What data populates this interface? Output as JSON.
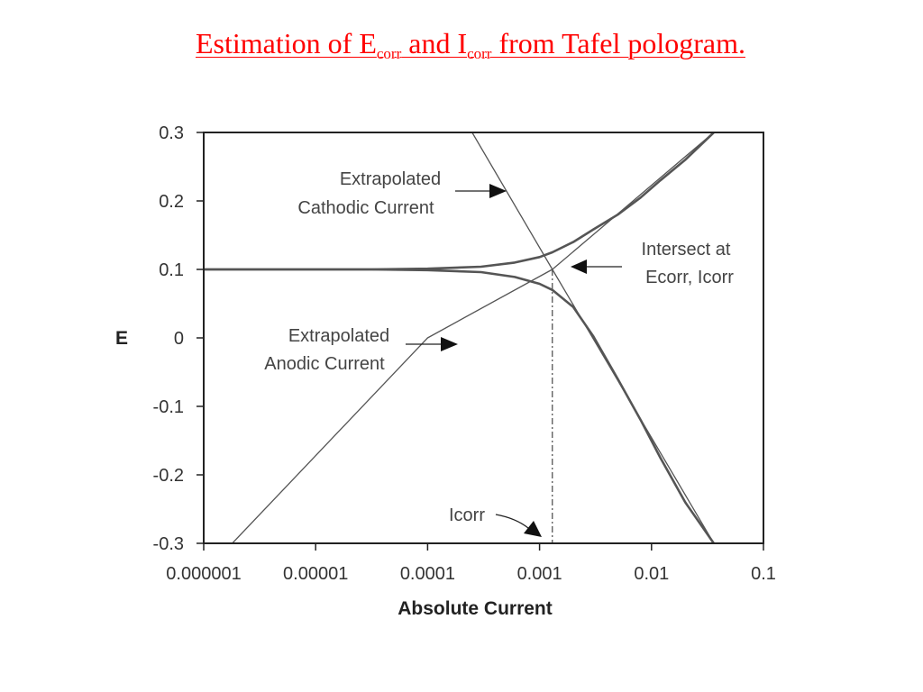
{
  "slide": {
    "title_prefix": "Estimation of E",
    "title_sub1": "corr",
    "title_mid": " and I",
    "title_sub2": "corr",
    "title_suffix": " from Tafel pologram.",
    "title_color": "#ff0000"
  },
  "chart_data": {
    "type": "line",
    "title": "",
    "xlabel": "Absolute Current",
    "ylabel": "E",
    "x_scale": "log",
    "xlim": [
      1e-06,
      0.1
    ],
    "ylim": [
      -0.3,
      0.3
    ],
    "x_ticks": [
      1e-06,
      1e-05,
      0.0001,
      0.001,
      0.01,
      0.1
    ],
    "x_tick_labels": [
      "0.000001",
      "0.00001",
      "0.0001",
      "0.001",
      "0.01",
      "0.1"
    ],
    "y_ticks": [
      0.3,
      0.2,
      0.1,
      0,
      -0.1,
      -0.2,
      -0.3
    ],
    "y_tick_labels": [
      "0.3",
      "0.2",
      "0.1",
      "0",
      "-0.1",
      "-0.2",
      "-0.3"
    ],
    "grid": false,
    "legend": "none",
    "line_color": "#555555",
    "series": [
      {
        "x": [
          1.8e-06,
          0.0001,
          0.0013,
          0.036
        ],
        "y": [
          -0.3,
          0.0,
          0.1,
          0.3
        ]
      },
      {
        "x": [
          0.00025,
          0.0013,
          0.036
        ],
        "y": [
          0.3,
          0.1,
          -0.3
        ]
      },
      {
        "x": [
          1e-06,
          3e-05,
          0.0001,
          0.0003,
          0.0006,
          0.001,
          0.0013,
          0.002,
          0.003,
          0.005,
          0.008,
          0.012,
          0.02,
          0.036
        ],
        "y": [
          0.1,
          0.1,
          0.101,
          0.104,
          0.11,
          0.118,
          0.125,
          0.14,
          0.158,
          0.18,
          0.205,
          0.23,
          0.26,
          0.3
        ]
      },
      {
        "x": [
          1e-06,
          3e-05,
          0.0001,
          0.0003,
          0.0006,
          0.001,
          0.0013,
          0.002,
          0.003,
          0.005,
          0.008,
          0.012,
          0.02,
          0.036
        ],
        "y": [
          0.1,
          0.1,
          0.099,
          0.096,
          0.089,
          0.079,
          0.07,
          0.045,
          0.003,
          -0.06,
          -0.12,
          -0.175,
          -0.24,
          -0.3
        ]
      }
    ],
    "corrosion_point": {
      "x": 0.0013,
      "y": 0.1
    },
    "annotations": [
      {
        "lines": [
          "Extrapolated",
          "Cathodic Current"
        ]
      },
      {
        "lines": [
          "Intersect at",
          "Ecorr, Icorr"
        ]
      },
      {
        "lines": [
          "Extrapolated",
          "Anodic Current"
        ]
      },
      {
        "lines": [
          "Icorr"
        ]
      }
    ]
  }
}
